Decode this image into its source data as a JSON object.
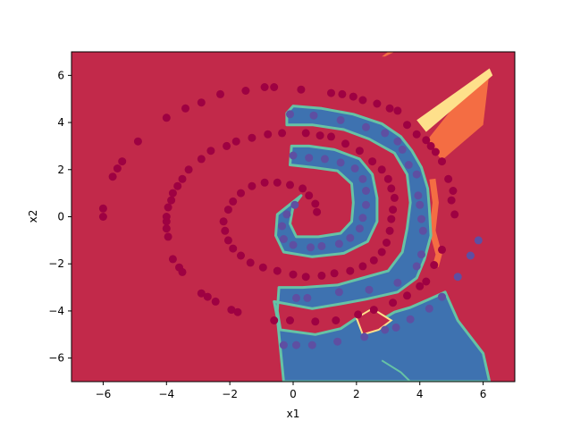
{
  "chart_data": {
    "type": "scatter",
    "title": "",
    "xlabel": "x1",
    "ylabel": "x2",
    "xlim": [
      -7,
      7
    ],
    "ylim": [
      -7,
      7
    ],
    "x_ticks": [
      -6,
      -4,
      -2,
      0,
      2,
      4,
      6
    ],
    "y_ticks": [
      -6,
      -4,
      -2,
      0,
      2,
      4,
      6
    ],
    "x_tick_labels": [
      "−6",
      "−4",
      "−2",
      "0",
      "2",
      "4",
      "6"
    ],
    "y_tick_labels": [
      "−6",
      "−4",
      "−2",
      "0",
      "2",
      "4",
      "6"
    ],
    "grid": false,
    "legend": "none",
    "background_region_color": "#c2294a",
    "region_colors": {
      "class_0": "#c2294a",
      "class_1": "#3e72b0",
      "boundary_orange": "#f46d43",
      "boundary_yellow": "#fee08b",
      "boundary_green": "#66c2a5"
    },
    "point_colors": {
      "class_0": "#9e0142",
      "class_1": "#5e4fa2"
    },
    "series": [
      {
        "class": 0,
        "points": [
          [
            -6.0,
            0.0
          ],
          [
            -6.0,
            0.35
          ],
          [
            -5.7,
            1.7
          ],
          [
            -5.55,
            2.05
          ],
          [
            -5.4,
            2.35
          ],
          [
            -4.9,
            3.2
          ],
          [
            -4.0,
            4.2
          ],
          [
            -3.4,
            4.6
          ],
          [
            -2.9,
            4.85
          ],
          [
            -2.3,
            5.2
          ],
          [
            -1.5,
            5.35
          ],
          [
            -0.9,
            5.5
          ],
          [
            -0.6,
            5.5
          ],
          [
            0.25,
            5.4
          ],
          [
            1.2,
            5.25
          ],
          [
            1.55,
            5.2
          ],
          [
            1.9,
            5.1
          ],
          [
            2.2,
            4.95
          ],
          [
            2.65,
            4.8
          ],
          [
            3.05,
            4.6
          ],
          [
            3.3,
            4.5
          ],
          [
            3.6,
            3.9
          ],
          [
            3.9,
            3.5
          ],
          [
            4.2,
            3.25
          ],
          [
            4.35,
            3.0
          ],
          [
            4.5,
            2.75
          ],
          [
            4.7,
            2.35
          ],
          [
            4.9,
            1.6
          ],
          [
            5.05,
            1.1
          ],
          [
            5.0,
            0.7
          ],
          [
            5.1,
            0.1
          ],
          [
            -3.3,
            2.0
          ],
          [
            -2.9,
            2.45
          ],
          [
            -2.6,
            2.8
          ],
          [
            -2.1,
            3.0
          ],
          [
            -1.8,
            3.2
          ],
          [
            -1.3,
            3.35
          ],
          [
            -0.8,
            3.5
          ],
          [
            -0.35,
            3.55
          ],
          [
            0.4,
            3.55
          ],
          [
            0.85,
            3.45
          ],
          [
            1.2,
            3.4
          ],
          [
            1.65,
            3.1
          ],
          [
            2.1,
            2.8
          ],
          [
            2.5,
            2.35
          ],
          [
            2.8,
            2.0
          ],
          [
            3.0,
            1.6
          ],
          [
            3.1,
            1.2
          ],
          [
            3.2,
            0.8
          ],
          [
            3.15,
            0.3
          ],
          [
            3.1,
            -0.1
          ],
          [
            3.05,
            -0.6
          ],
          [
            2.95,
            -1.1
          ],
          [
            2.8,
            -1.5
          ],
          [
            2.55,
            -1.85
          ],
          [
            2.2,
            -2.1
          ],
          [
            1.8,
            -2.3
          ],
          [
            1.3,
            -2.4
          ],
          [
            0.9,
            -2.5
          ],
          [
            0.4,
            -2.55
          ],
          [
            0.0,
            -2.45
          ],
          [
            -0.5,
            -2.3
          ],
          [
            -0.95,
            -2.15
          ],
          [
            -1.35,
            -1.95
          ],
          [
            -1.65,
            -1.65
          ],
          [
            -1.9,
            -1.35
          ],
          [
            -2.05,
            -1.0
          ],
          [
            -2.15,
            -0.6
          ],
          [
            -2.2,
            -0.2
          ],
          [
            -2.05,
            0.3
          ],
          [
            -1.9,
            0.65
          ],
          [
            -1.65,
            1.0
          ],
          [
            -1.3,
            1.3
          ],
          [
            -0.9,
            1.45
          ],
          [
            -0.5,
            1.45
          ],
          [
            -0.1,
            1.35
          ],
          [
            0.3,
            1.2
          ],
          [
            0.5,
            0.9
          ],
          [
            0.7,
            0.55
          ],
          [
            0.75,
            0.2
          ],
          [
            -4.0,
            -0.2
          ],
          [
            -4.0,
            0.0
          ],
          [
            -3.95,
            0.4
          ],
          [
            -3.85,
            0.7
          ],
          [
            -3.8,
            1.0
          ],
          [
            -3.65,
            1.3
          ],
          [
            -3.5,
            1.6
          ],
          [
            -4.0,
            -0.5
          ],
          [
            -3.95,
            -0.85
          ],
          [
            -3.8,
            -1.8
          ],
          [
            -3.6,
            -2.15
          ],
          [
            -3.5,
            -2.35
          ],
          [
            -2.9,
            -3.25
          ],
          [
            -2.7,
            -3.4
          ],
          [
            -2.45,
            -3.6
          ],
          [
            -1.95,
            -3.95
          ],
          [
            -1.75,
            -4.05
          ],
          [
            -0.6,
            -4.4
          ],
          [
            -0.1,
            -4.4
          ],
          [
            0.7,
            -4.45
          ],
          [
            1.35,
            -4.4
          ],
          [
            2.05,
            -4.15
          ],
          [
            2.55,
            -3.95
          ],
          [
            3.15,
            -3.65
          ],
          [
            3.6,
            -3.35
          ],
          [
            4.0,
            -2.95
          ],
          [
            4.2,
            -2.75
          ],
          [
            4.45,
            -2.05
          ],
          [
            4.7,
            -1.4
          ]
        ]
      },
      {
        "class": 1,
        "points": [
          [
            5.85,
            -1.0
          ],
          [
            5.6,
            -1.65
          ],
          [
            5.2,
            -2.55
          ],
          [
            4.7,
            -3.4
          ],
          [
            4.3,
            -3.9
          ],
          [
            3.7,
            -4.35
          ],
          [
            3.25,
            -4.7
          ],
          [
            2.9,
            -4.8
          ],
          [
            2.25,
            -5.1
          ],
          [
            1.4,
            -5.3
          ],
          [
            0.6,
            -5.45
          ],
          [
            0.1,
            -5.45
          ],
          [
            -0.3,
            -5.45
          ],
          [
            0.1,
            -3.45
          ],
          [
            0.45,
            -3.45
          ],
          [
            1.45,
            -3.2
          ],
          [
            2.4,
            -3.1
          ],
          [
            3.3,
            -2.8
          ],
          [
            3.9,
            -2.1
          ],
          [
            4.05,
            -1.6
          ],
          [
            4.1,
            -0.6
          ],
          [
            4.05,
            -0.1
          ],
          [
            4.0,
            0.5
          ],
          [
            3.95,
            0.9
          ],
          [
            3.9,
            1.8
          ],
          [
            3.65,
            2.2
          ],
          [
            3.45,
            2.85
          ],
          [
            3.3,
            3.2
          ],
          [
            2.9,
            3.55
          ],
          [
            2.3,
            3.8
          ],
          [
            1.5,
            4.1
          ],
          [
            0.65,
            4.3
          ],
          [
            -0.1,
            4.35
          ],
          [
            0.0,
            2.6
          ],
          [
            0.5,
            2.5
          ],
          [
            1.0,
            2.45
          ],
          [
            1.5,
            2.3
          ],
          [
            1.95,
            2.05
          ],
          [
            2.2,
            1.6
          ],
          [
            2.3,
            1.1
          ],
          [
            2.3,
            0.5
          ],
          [
            2.2,
            -0.05
          ],
          [
            2.1,
            -0.5
          ],
          [
            1.8,
            -0.9
          ],
          [
            1.45,
            -1.15
          ],
          [
            0.9,
            -1.25
          ],
          [
            0.55,
            -1.3
          ],
          [
            0.0,
            -1.2
          ],
          [
            -0.3,
            -0.95
          ],
          [
            -0.35,
            -0.4
          ],
          [
            -0.2,
            0.1
          ],
          [
            0.05,
            0.5
          ]
        ]
      }
    ]
  }
}
